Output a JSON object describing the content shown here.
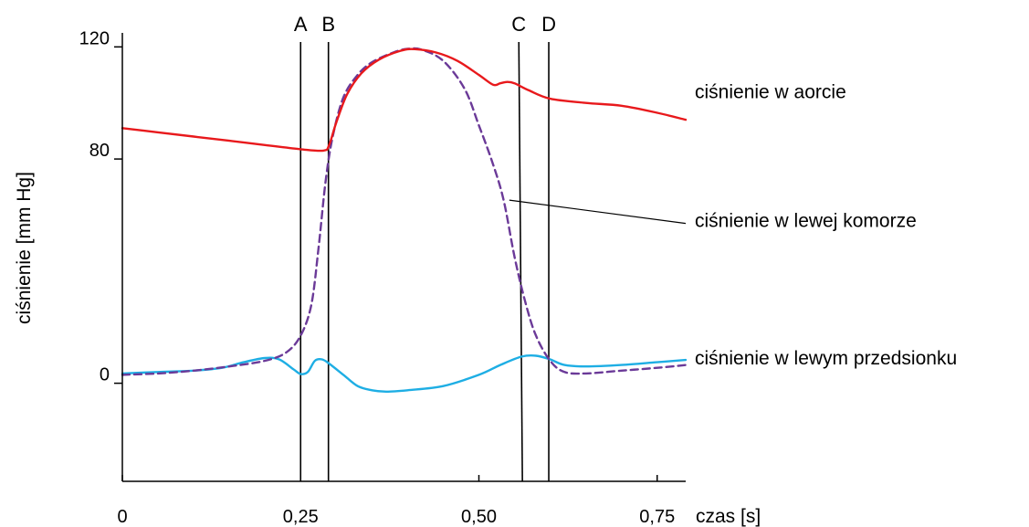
{
  "chart_data": {
    "type": "line",
    "xlabel": "czas [s]",
    "ylabel": "ciśnienie [mm Hg]",
    "xlim": [
      0,
      0.79
    ],
    "ylim": [
      -35,
      125
    ],
    "x_ticks": [
      {
        "value": 0,
        "label": "0"
      },
      {
        "value": 0.25,
        "label": "0,25"
      },
      {
        "value": 0.5,
        "label": "0,50"
      },
      {
        "value": 0.75,
        "label": "0,75"
      }
    ],
    "y_ticks": [
      {
        "value": 0,
        "label": "0"
      },
      {
        "value": 80,
        "label": "80"
      },
      {
        "value": 120,
        "label": "120"
      }
    ],
    "grid": false,
    "markers": [
      {
        "label": "A",
        "x_top": 0.25,
        "x_bottom": 0.25
      },
      {
        "label": "B",
        "x_top": 0.289,
        "x_bottom": 0.289
      },
      {
        "label": "C",
        "x_top": 0.556,
        "x_bottom": 0.561
      },
      {
        "label": "D",
        "x_top": 0.598,
        "x_bottom": 0.598
      }
    ],
    "series": [
      {
        "name": "ciśnienie w aorcie",
        "color": "#e8191c",
        "dash": false,
        "label_value": [
          0.79,
          104
        ],
        "points": [
          [
            0,
            91
          ],
          [
            0.05,
            89.5
          ],
          [
            0.1,
            88
          ],
          [
            0.15,
            86.5
          ],
          [
            0.2,
            85
          ],
          [
            0.25,
            83.5
          ],
          [
            0.282,
            83
          ],
          [
            0.29,
            85
          ],
          [
            0.3,
            93
          ],
          [
            0.315,
            103
          ],
          [
            0.335,
            110.5
          ],
          [
            0.36,
            115.5
          ],
          [
            0.39,
            118.6
          ],
          [
            0.41,
            119.2
          ],
          [
            0.44,
            118
          ],
          [
            0.47,
            115
          ],
          [
            0.5,
            110
          ],
          [
            0.52,
            106.5
          ],
          [
            0.53,
            107
          ],
          [
            0.54,
            107.5
          ],
          [
            0.55,
            107
          ],
          [
            0.57,
            104.5
          ],
          [
            0.6,
            101.5
          ],
          [
            0.65,
            100
          ],
          [
            0.7,
            99
          ],
          [
            0.75,
            96.5
          ],
          [
            0.79,
            94
          ]
        ]
      },
      {
        "name": "ciśnienie w lewej komorze",
        "color": "#6b3a98",
        "dash": true,
        "label_value": [
          0.79,
          58
        ],
        "leader_from": [
          0.535,
          65
        ],
        "points": [
          [
            0,
            3
          ],
          [
            0.05,
            3.5
          ],
          [
            0.1,
            4.5
          ],
          [
            0.15,
            6
          ],
          [
            0.2,
            8
          ],
          [
            0.23,
            11
          ],
          [
            0.25,
            17
          ],
          [
            0.265,
            28
          ],
          [
            0.275,
            48
          ],
          [
            0.285,
            72
          ],
          [
            0.295,
            88
          ],
          [
            0.31,
            102
          ],
          [
            0.33,
            110
          ],
          [
            0.35,
            114.5
          ],
          [
            0.38,
            118
          ],
          [
            0.4,
            119.3
          ],
          [
            0.42,
            119
          ],
          [
            0.45,
            115
          ],
          [
            0.48,
            105
          ],
          [
            0.5,
            92
          ],
          [
            0.52,
            78
          ],
          [
            0.535,
            65
          ],
          [
            0.55,
            45
          ],
          [
            0.565,
            29
          ],
          [
            0.58,
            17
          ],
          [
            0.6,
            8
          ],
          [
            0.62,
            4
          ],
          [
            0.65,
            3.5
          ],
          [
            0.7,
            4.5
          ],
          [
            0.75,
            5.5
          ],
          [
            0.79,
            6.5
          ]
        ]
      },
      {
        "name": "ciśnienie w lewym przedsionku",
        "color": "#1eaee4",
        "dash": false,
        "label_value": [
          0.79,
          9
        ],
        "points": [
          [
            0,
            3.5
          ],
          [
            0.05,
            4
          ],
          [
            0.1,
            4.5
          ],
          [
            0.14,
            5.5
          ],
          [
            0.17,
            7.5
          ],
          [
            0.2,
            9
          ],
          [
            0.22,
            8.5
          ],
          [
            0.24,
            5
          ],
          [
            0.25,
            3.3
          ],
          [
            0.26,
            4
          ],
          [
            0.27,
            8
          ],
          [
            0.28,
            8.5
          ],
          [
            0.29,
            7
          ],
          [
            0.31,
            3
          ],
          [
            0.33,
            -1
          ],
          [
            0.35,
            -2.5
          ],
          [
            0.37,
            -3
          ],
          [
            0.4,
            -2.5
          ],
          [
            0.45,
            -1
          ],
          [
            0.5,
            3
          ],
          [
            0.53,
            6.5
          ],
          [
            0.56,
            9.5
          ],
          [
            0.58,
            9.8
          ],
          [
            0.6,
            8.5
          ],
          [
            0.62,
            6.5
          ],
          [
            0.65,
            6
          ],
          [
            0.7,
            6.5
          ],
          [
            0.75,
            7.5
          ],
          [
            0.79,
            8.3
          ]
        ]
      }
    ]
  }
}
